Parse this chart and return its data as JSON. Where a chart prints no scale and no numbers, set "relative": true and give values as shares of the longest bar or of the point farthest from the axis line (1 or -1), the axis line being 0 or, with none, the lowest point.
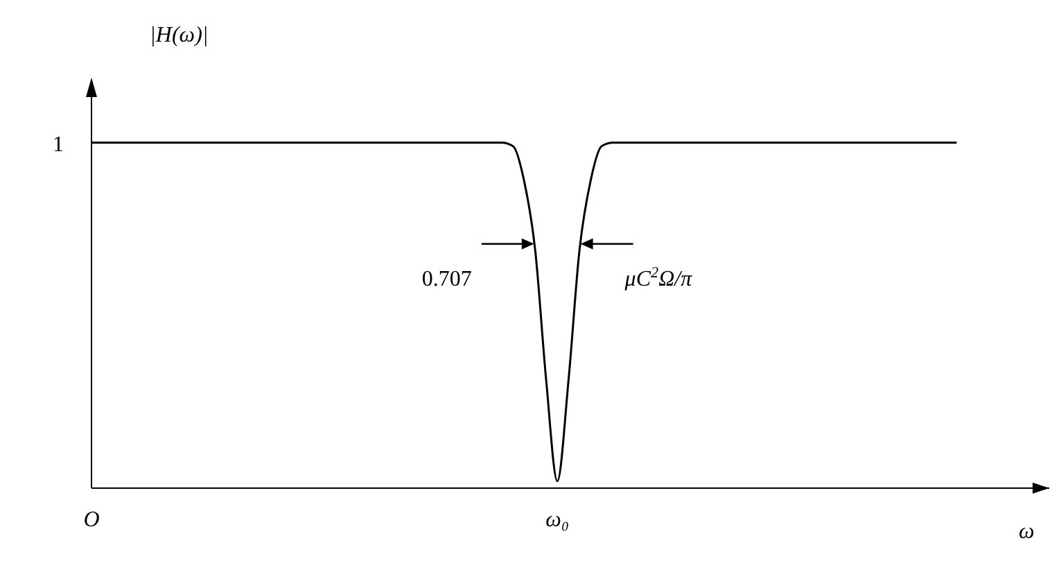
{
  "chart_data": {
    "type": "line",
    "relative": true,
    "xlabel": "ω",
    "ylabel": "|H(ω)|",
    "categories": [
      "O",
      null,
      null,
      null,
      null,
      null,
      null,
      null,
      null,
      null,
      null,
      null,
      null,
      null,
      null,
      null,
      null,
      null,
      null,
      null,
      null,
      null,
      null,
      null,
      null,
      null,
      null,
      null,
      null,
      null,
      null,
      null,
      null,
      null,
      null,
      null,
      null,
      null,
      null,
      null,
      null,
      null,
      "ω₀",
      null,
      null,
      null,
      null,
      null,
      null,
      null,
      null,
      null,
      null,
      null,
      null,
      null,
      null,
      null,
      null,
      null,
      null,
      null,
      null,
      null,
      null,
      null,
      null,
      null,
      null,
      null,
      null,
      null,
      null,
      null,
      null,
      null,
      null,
      null,
      null
    ],
    "series": [
      {
        "color": "#000000",
        "values": [
          1,
          1,
          1,
          1,
          1,
          1,
          1,
          1,
          1,
          1,
          1,
          1,
          1,
          1,
          1,
          1,
          1,
          1,
          1,
          1,
          1,
          1,
          1,
          1,
          1,
          1,
          1,
          1,
          1,
          1,
          1,
          1,
          1,
          1,
          1,
          1,
          1,
          1,
          0.99,
          0.89,
          0.69,
          0.31,
          0.02,
          0.31,
          0.69,
          0.89,
          0.99,
          1,
          1,
          1,
          1,
          1,
          1,
          1,
          1,
          1,
          1,
          1,
          1,
          1,
          1,
          1,
          1,
          1,
          1,
          1,
          1,
          1,
          1,
          1,
          1,
          1,
          1,
          1,
          1,
          1,
          1,
          1,
          1
        ]
      }
    ],
    "annotations": [
      "1",
      "0.707",
      "μC$^{2}$Ω/π"
    ],
    "grid": false,
    "legend": false,
    "marker": "none",
    "line_style": "solid"
  }
}
